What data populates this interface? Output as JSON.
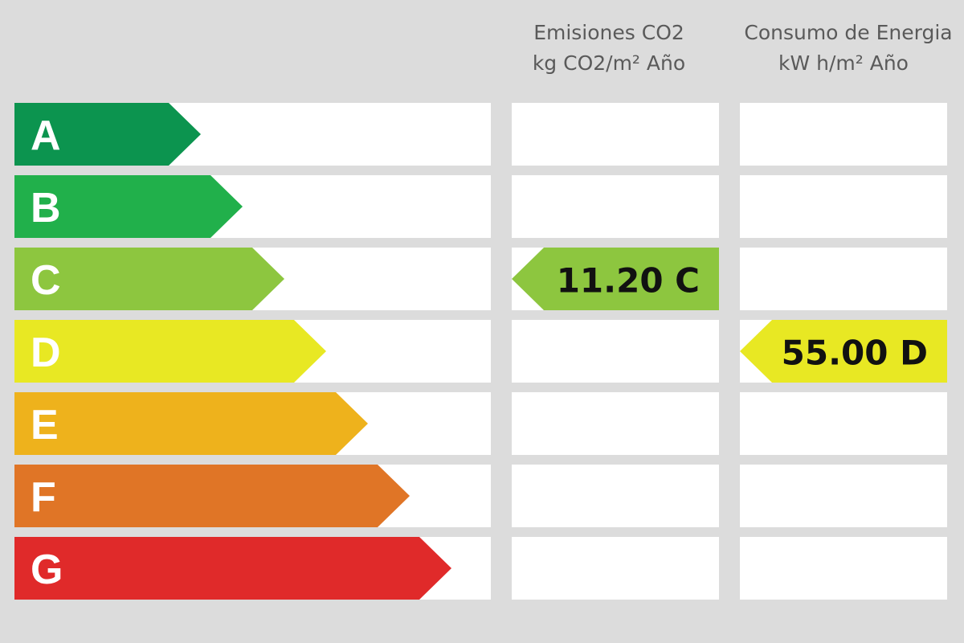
{
  "header": {
    "emissions": [
      "Emisiones CO2",
      "kg CO2/m² Año"
    ],
    "energy": [
      "Consumo de Energia",
      "kW h/m² Año"
    ]
  },
  "rows": [
    {
      "label": "A",
      "color": "#0c944f"
    },
    {
      "label": "B",
      "color": "#21b04b"
    },
    {
      "label": "C",
      "color": "#8dc63f",
      "emissions": "11.20 C"
    },
    {
      "label": "D",
      "color": "#e8e823",
      "energy": "55.00 D"
    },
    {
      "label": "E",
      "color": "#eeb21c"
    },
    {
      "label": "F",
      "color": "#e07526"
    },
    {
      "label": "G",
      "color": "#e02a2a"
    }
  ]
}
